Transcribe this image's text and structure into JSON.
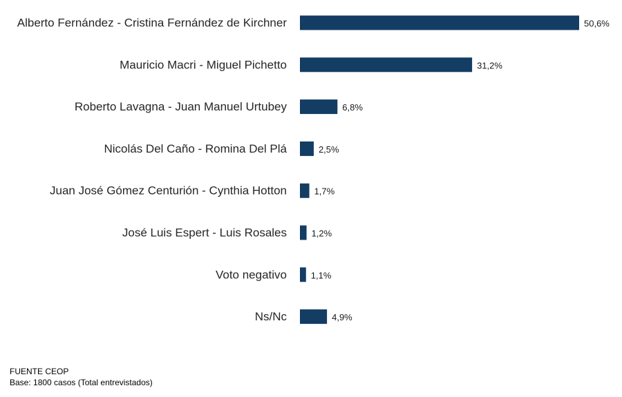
{
  "chart_data": {
    "type": "bar",
    "orientation": "horizontal",
    "categories": [
      "Alberto Fernández - Cristina Fernández de Kirchner",
      "Mauricio Macri - Miguel Pichetto",
      "Roberto Lavagna - Juan Manuel Urtubey",
      "Nicolás Del Caño - Romina Del Plá",
      "Juan José Gómez Centurión - Cynthia Hotton",
      "José Luis Espert - Luis Rosales",
      "Voto negativo",
      "Ns/Nc"
    ],
    "values": [
      50.6,
      31.2,
      6.8,
      2.5,
      1.7,
      1.2,
      1.1,
      4.9
    ],
    "value_labels": [
      "50,6%",
      "31,2%",
      "6,8%",
      "2,5%",
      "1,7%",
      "1,2%",
      "1,1%",
      "4,9%"
    ],
    "unit": "%",
    "xlim": [
      0,
      50.6
    ],
    "grid": false,
    "legend": "none",
    "bar_color": "#133d63"
  },
  "footer": {
    "source": "FUENTE CEOP",
    "base": "Base: 1800 casos (Total entrevistados)"
  }
}
